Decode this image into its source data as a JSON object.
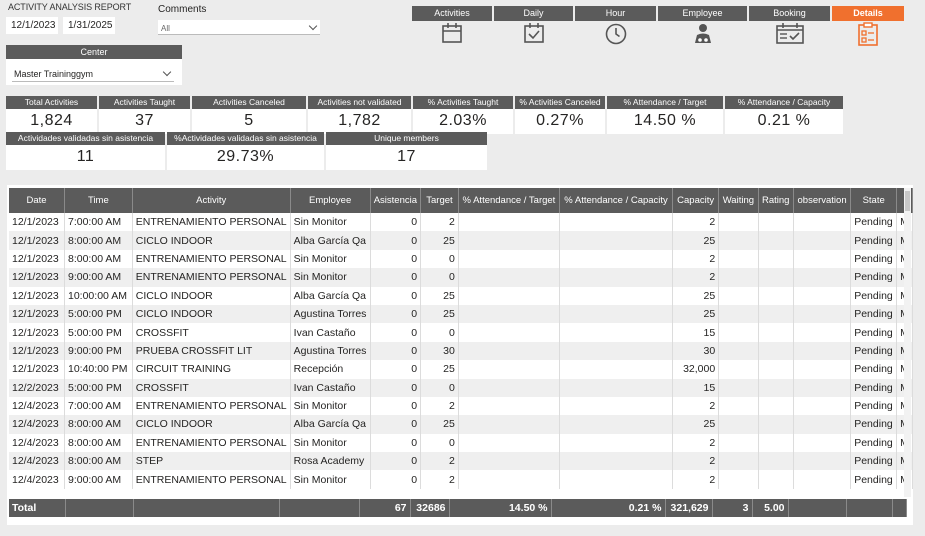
{
  "report_title": "ACTIVITY ANALYSIS REPORT",
  "date_from": "12/1/2023",
  "date_to": "1/31/2025",
  "comments": {
    "label": "Comments",
    "value": "All"
  },
  "nav": [
    {
      "label": "Activities",
      "icon": "calendar-icon"
    },
    {
      "label": "Daily",
      "icon": "calendar-check-icon"
    },
    {
      "label": "Hour",
      "icon": "clock-icon"
    },
    {
      "label": "Employee",
      "icon": "employee-icon"
    },
    {
      "label": "Booking",
      "icon": "booking-icon"
    },
    {
      "label": "Details",
      "icon": "clipboard-icon"
    }
  ],
  "center": {
    "label": "Center",
    "value": "Master Traininggym"
  },
  "kpis": [
    {
      "label": "Total Activities",
      "value": "1,824"
    },
    {
      "label": "Activities Taught",
      "value": "37"
    },
    {
      "label": "Activities Canceled",
      "value": "5"
    },
    {
      "label": "Activities not validated",
      "value": "1,782"
    },
    {
      "label": "% Activities Taught",
      "value": "2.03%"
    },
    {
      "label": "% Activities Canceled",
      "value": "0.27%"
    },
    {
      "label": "% Attendance / Target",
      "value": "14.50 %"
    },
    {
      "label": "% Attendance /  Capacity",
      "value": "0.21 %"
    },
    {
      "label": "Actividades validadas sin asistencia",
      "value": "11"
    },
    {
      "label": "%Actividades validadas sin asistencia",
      "value": "29.73%"
    },
    {
      "label": "Unique members",
      "value": "17"
    }
  ],
  "table": {
    "columns": [
      "Date",
      "Time",
      "Activity",
      "Employee",
      "Asistencia",
      "Target",
      "% Attendance / Target",
      "% Attendance / Capacity",
      "Capacity",
      "Waiting",
      "Rating",
      "observation",
      "State",
      ""
    ],
    "rows": [
      [
        "12/1/2023",
        "7:00:00 AM",
        "ENTRENAMIENTO PERSONAL",
        "Sin Monitor",
        "0",
        "2",
        "",
        "",
        "2",
        "",
        "",
        "",
        "Pending",
        "M"
      ],
      [
        "12/1/2023",
        "8:00:00 AM",
        "CICLO INDOOR",
        "Alba García Qa",
        "0",
        "25",
        "",
        "",
        "25",
        "",
        "",
        "",
        "Pending",
        "M"
      ],
      [
        "12/1/2023",
        "8:00:00 AM",
        "ENTRENAMIENTO PERSONAL",
        "Sin Monitor",
        "0",
        "0",
        "",
        "",
        "2",
        "",
        "",
        "",
        "Pending",
        "M"
      ],
      [
        "12/1/2023",
        "9:00:00 AM",
        "ENTRENAMIENTO PERSONAL",
        "Sin Monitor",
        "0",
        "0",
        "",
        "",
        "2",
        "",
        "",
        "",
        "Pending",
        "M"
      ],
      [
        "12/1/2023",
        "10:00:00 AM",
        "CICLO INDOOR",
        "Alba García Qa",
        "0",
        "25",
        "",
        "",
        "25",
        "",
        "",
        "",
        "Pending",
        "M"
      ],
      [
        "12/1/2023",
        "5:00:00 PM",
        "CICLO INDOOR",
        "Agustina Torres",
        "0",
        "25",
        "",
        "",
        "25",
        "",
        "",
        "",
        "Pending",
        "M"
      ],
      [
        "12/1/2023",
        "5:00:00 PM",
        "CROSSFIT",
        "Ivan Castaño",
        "0",
        "0",
        "",
        "",
        "15",
        "",
        "",
        "",
        "Pending",
        "M"
      ],
      [
        "12/1/2023",
        "9:00:00 PM",
        "PRUEBA CROSSFIT LIT",
        "Agustina Torres",
        "0",
        "30",
        "",
        "",
        "30",
        "",
        "",
        "",
        "Pending",
        "M"
      ],
      [
        "12/1/2023",
        "10:40:00 PM",
        "CIRCUIT TRAINING",
        "Recepción",
        "0",
        "25",
        "",
        "",
        "32,000",
        "",
        "",
        "",
        "Pending",
        "M"
      ],
      [
        "12/2/2023",
        "5:00:00 PM",
        "CROSSFIT",
        "Ivan Castaño",
        "0",
        "0",
        "",
        "",
        "15",
        "",
        "",
        "",
        "Pending",
        "M"
      ],
      [
        "12/4/2023",
        "7:00:00 AM",
        "ENTRENAMIENTO PERSONAL",
        "Sin Monitor",
        "0",
        "2",
        "",
        "",
        "2",
        "",
        "",
        "",
        "Pending",
        "M"
      ],
      [
        "12/4/2023",
        "8:00:00 AM",
        "CICLO INDOOR",
        "Alba García Qa",
        "0",
        "25",
        "",
        "",
        "25",
        "",
        "",
        "",
        "Pending",
        "M"
      ],
      [
        "12/4/2023",
        "8:00:00 AM",
        "ENTRENAMIENTO PERSONAL",
        "Sin Monitor",
        "0",
        "0",
        "",
        "",
        "2",
        "",
        "",
        "",
        "Pending",
        "M"
      ],
      [
        "12/4/2023",
        "8:00:00 AM",
        "STEP",
        "Rosa Academy",
        "0",
        "2",
        "",
        "",
        "2",
        "",
        "",
        "",
        "Pending",
        "M"
      ],
      [
        "12/4/2023",
        "9:00:00 AM",
        "ENTRENAMIENTO PERSONAL",
        "Sin Monitor",
        "0",
        "2",
        "",
        "",
        "2",
        "",
        "",
        "",
        "Pending",
        "M"
      ]
    ],
    "total": [
      "Total",
      "",
      "",
      "",
      "67",
      "32686",
      "14.50 %",
      "0.21 %",
      "321,629",
      "3",
      "5.00",
      "",
      "",
      ""
    ]
  }
}
